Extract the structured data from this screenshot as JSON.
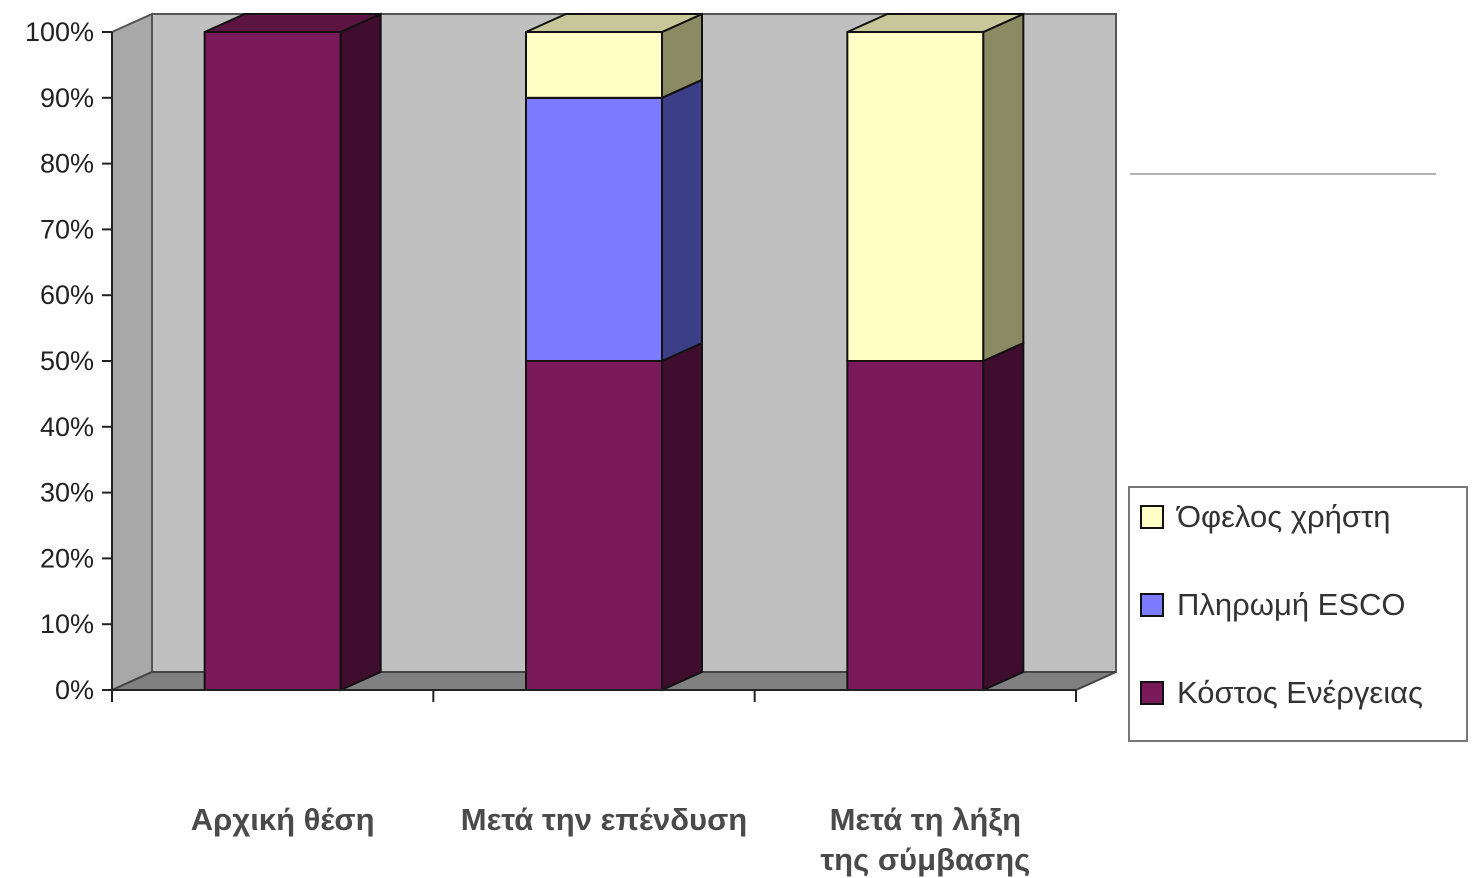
{
  "chart_data": {
    "type": "bar",
    "stacked": "percent",
    "three_d": true,
    "categories": [
      [
        "Αρχική θέση"
      ],
      [
        "Μετά την επένδυση"
      ],
      [
        "Μετά τη λήξη",
        "της σύμβασης"
      ]
    ],
    "series": [
      {
        "name": "Κόστος Ενέργειας",
        "values": [
          100,
          50,
          50
        ],
        "color": "#7b1a5b",
        "side_color": "#3f0d2e",
        "top_color": "#5c1443"
      },
      {
        "name": "Πληρωμή ESCO",
        "values": [
          0,
          40,
          0
        ],
        "color": "#7b7bff",
        "side_color": "#3c3f88",
        "top_color": "#5b5ec4"
      },
      {
        "name": "Όφελος χρήστη",
        "values": [
          0,
          10,
          50
        ],
        "color": "#ffffc6",
        "side_color": "#8a8a63",
        "top_color": "#c7c79a"
      }
    ],
    "y_ticks": [
      "0%",
      "10%",
      "20%",
      "30%",
      "40%",
      "50%",
      "60%",
      "70%",
      "80%",
      "90%",
      "100%"
    ],
    "ylim": [
      0,
      100
    ],
    "grid": false,
    "legend_position": "right",
    "legend_order": [
      "Όφελος χρήστη",
      "Πληρωμή ESCO",
      "Κόστος Ενέργειας"
    ],
    "wall_color": "#c0c0c0",
    "floor_color": "#808080"
  }
}
